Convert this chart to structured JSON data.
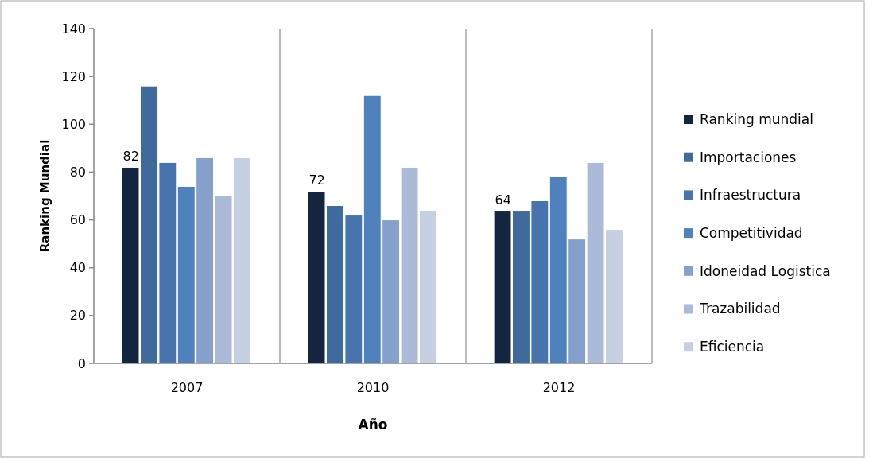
{
  "chart_data": {
    "type": "bar",
    "xlabel": "Año",
    "ylabel": "Ranking Mundial",
    "categories": [
      "2007",
      "2010",
      "2012"
    ],
    "series": [
      {
        "name": "Ranking mundial",
        "color": "#14263f",
        "values": [
          82,
          72,
          64
        ],
        "value_labels": [
          "82",
          "72",
          "64"
        ]
      },
      {
        "name": "Importaciones",
        "color": "#3f6a9c",
        "values": [
          116,
          66,
          64
        ]
      },
      {
        "name": "Infraestructura",
        "color": "#4774ad",
        "values": [
          84,
          62,
          68
        ]
      },
      {
        "name": "Competitividad",
        "color": "#4f81bd",
        "values": [
          74,
          112,
          78
        ]
      },
      {
        "name": "Idoneidad Logistica",
        "color": "#85a0cb",
        "values": [
          86,
          60,
          52
        ]
      },
      {
        "name": "Trazabilidad",
        "color": "#abbad8",
        "values": [
          70,
          82,
          84
        ]
      },
      {
        "name": "Eficiencia",
        "color": "#c5d0e3",
        "values": [
          86,
          64,
          56
        ]
      }
    ],
    "ylim": [
      0,
      140
    ],
    "yticks": [
      0,
      20,
      40,
      60,
      80,
      100,
      120,
      140
    ],
    "grid": "x",
    "legend": "right"
  }
}
